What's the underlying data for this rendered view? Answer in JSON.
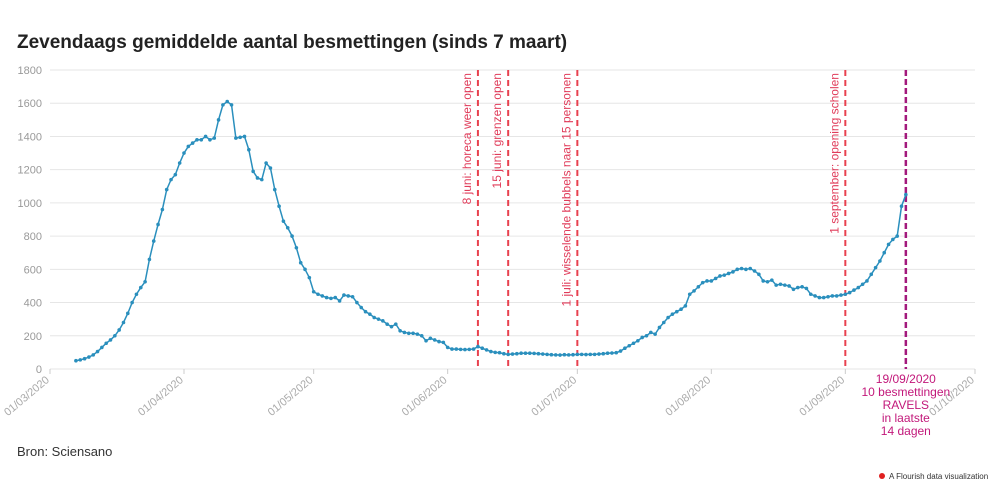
{
  "chart_data": {
    "type": "line",
    "title": "Zevendaags gemiddelde aantal besmettingen (sinds 7 maart)",
    "source": "Bron: Sciensano",
    "footer": "A Flourish data visualization",
    "xlim": [
      "01/03/2020",
      "01/10/2020"
    ],
    "xticks": [
      "01/03/2020",
      "01/04/2020",
      "01/05/2020",
      "01/06/2020",
      "01/07/2020",
      "01/08/2020",
      "01/09/2020",
      "01/10/2020"
    ],
    "ylim": [
      0,
      1800
    ],
    "yticks": [
      0,
      200,
      400,
      600,
      800,
      1000,
      1200,
      1400,
      1600,
      1800
    ],
    "grid": true,
    "x": [
      "07/03/2020",
      "08/03/2020",
      "09/03/2020",
      "10/03/2020",
      "11/03/2020",
      "12/03/2020",
      "13/03/2020",
      "14/03/2020",
      "15/03/2020",
      "16/03/2020",
      "17/03/2020",
      "18/03/2020",
      "19/03/2020",
      "20/03/2020",
      "21/03/2020",
      "22/03/2020",
      "23/03/2020",
      "24/03/2020",
      "25/03/2020",
      "26/03/2020",
      "27/03/2020",
      "28/03/2020",
      "29/03/2020",
      "30/03/2020",
      "31/03/2020",
      "01/04/2020",
      "02/04/2020",
      "03/04/2020",
      "04/04/2020",
      "05/04/2020",
      "06/04/2020",
      "07/04/2020",
      "08/04/2020",
      "09/04/2020",
      "10/04/2020",
      "11/04/2020",
      "12/04/2020",
      "13/04/2020",
      "14/04/2020",
      "15/04/2020",
      "16/04/2020",
      "17/04/2020",
      "18/04/2020",
      "19/04/2020",
      "20/04/2020",
      "21/04/2020",
      "22/04/2020",
      "23/04/2020",
      "24/04/2020",
      "25/04/2020",
      "26/04/2020",
      "27/04/2020",
      "28/04/2020",
      "29/04/2020",
      "30/04/2020",
      "01/05/2020",
      "02/05/2020",
      "03/05/2020",
      "04/05/2020",
      "05/05/2020",
      "06/05/2020",
      "07/05/2020",
      "08/05/2020",
      "09/05/2020",
      "10/05/2020",
      "11/05/2020",
      "12/05/2020",
      "13/05/2020",
      "14/05/2020",
      "15/05/2020",
      "16/05/2020",
      "17/05/2020",
      "18/05/2020",
      "19/05/2020",
      "20/05/2020",
      "21/05/2020",
      "22/05/2020",
      "23/05/2020",
      "24/05/2020",
      "25/05/2020",
      "26/05/2020",
      "27/05/2020",
      "28/05/2020",
      "29/05/2020",
      "30/05/2020",
      "31/05/2020",
      "01/06/2020",
      "02/06/2020",
      "03/06/2020",
      "04/06/2020",
      "05/06/2020",
      "06/06/2020",
      "07/06/2020",
      "08/06/2020",
      "09/06/2020",
      "10/06/2020",
      "11/06/2020",
      "12/06/2020",
      "13/06/2020",
      "14/06/2020",
      "15/06/2020",
      "16/06/2020",
      "17/06/2020",
      "18/06/2020",
      "19/06/2020",
      "20/06/2020",
      "21/06/2020",
      "22/06/2020",
      "23/06/2020",
      "24/06/2020",
      "25/06/2020",
      "26/06/2020",
      "27/06/2020",
      "28/06/2020",
      "29/06/2020",
      "30/06/2020",
      "01/07/2020",
      "02/07/2020",
      "03/07/2020",
      "04/07/2020",
      "05/07/2020",
      "06/07/2020",
      "07/07/2020",
      "08/07/2020",
      "09/07/2020",
      "10/07/2020",
      "11/07/2020",
      "12/07/2020",
      "13/07/2020",
      "14/07/2020",
      "15/07/2020",
      "16/07/2020",
      "17/07/2020",
      "18/07/2020",
      "19/07/2020",
      "20/07/2020",
      "21/07/2020",
      "22/07/2020",
      "23/07/2020",
      "24/07/2020",
      "25/07/2020",
      "26/07/2020",
      "27/07/2020",
      "28/07/2020",
      "29/07/2020",
      "30/07/2020",
      "31/07/2020",
      "01/08/2020",
      "02/08/2020",
      "03/08/2020",
      "04/08/2020",
      "05/08/2020",
      "06/08/2020",
      "07/08/2020",
      "08/08/2020",
      "09/08/2020",
      "10/08/2020",
      "11/08/2020",
      "12/08/2020",
      "13/08/2020",
      "14/08/2020",
      "15/08/2020",
      "16/08/2020",
      "17/08/2020",
      "18/08/2020",
      "19/08/2020",
      "20/08/2020",
      "21/08/2020",
      "22/08/2020",
      "23/08/2020",
      "24/08/2020",
      "25/08/2020",
      "26/08/2020",
      "27/08/2020",
      "28/08/2020",
      "29/08/2020",
      "30/08/2020",
      "31/08/2020",
      "01/09/2020",
      "02/09/2020",
      "03/09/2020",
      "04/09/2020",
      "05/09/2020",
      "06/09/2020",
      "07/09/2020",
      "08/09/2020",
      "09/09/2020",
      "10/09/2020",
      "11/09/2020",
      "12/09/2020",
      "13/09/2020",
      "14/09/2020",
      "15/09/2020"
    ],
    "color": "#2a8fbd",
    "values": [
      50,
      55,
      62,
      72,
      85,
      105,
      130,
      155,
      175,
      200,
      235,
      280,
      335,
      400,
      450,
      490,
      525,
      660,
      770,
      870,
      960,
      1080,
      1140,
      1170,
      1240,
      1300,
      1340,
      1360,
      1380,
      1380,
      1400,
      1380,
      1390,
      1500,
      1590,
      1610,
      1590,
      1390,
      1395,
      1400,
      1320,
      1190,
      1150,
      1140,
      1240,
      1210,
      1080,
      980,
      890,
      850,
      800,
      730,
      640,
      600,
      550,
      465,
      450,
      440,
      430,
      425,
      430,
      410,
      445,
      440,
      435,
      400,
      370,
      345,
      330,
      310,
      300,
      290,
      270,
      255,
      270,
      230,
      220,
      215,
      215,
      210,
      200,
      170,
      185,
      175,
      165,
      160,
      130,
      120,
      120,
      118,
      117,
      118,
      120,
      135,
      125,
      115,
      105,
      100,
      98,
      92,
      88,
      90,
      92,
      95,
      95,
      95,
      94,
      92,
      90,
      88,
      86,
      85,
      84,
      86,
      85,
      86,
      88,
      88,
      87,
      88,
      88,
      90,
      92,
      95,
      96,
      98,
      108,
      125,
      140,
      155,
      170,
      190,
      200,
      220,
      210,
      250,
      280,
      310,
      330,
      345,
      360,
      380,
      450,
      470,
      495,
      520,
      530,
      530,
      545,
      560,
      565,
      575,
      585,
      600,
      605,
      600,
      605,
      590,
      570,
      530,
      525,
      535,
      505,
      510,
      505,
      500,
      480,
      490,
      495,
      485,
      450,
      440,
      430,
      430,
      435,
      440,
      440,
      445,
      450,
      460,
      475,
      490,
      510,
      530,
      570,
      610,
      650,
      700,
      750,
      780,
      800,
      980,
      1050
    ],
    "annotations": [
      {
        "x": "08/06/2020",
        "label": "8 juni: horeca weer open"
      },
      {
        "x": "15/06/2020",
        "label": "15 juni: grenzen open"
      },
      {
        "x": "01/07/2020",
        "label": "1 juli: wisselende bubbels naar 15 personen"
      },
      {
        "x": "01/09/2020",
        "label": "1 september: opening scholen"
      }
    ],
    "highlight": {
      "lines": [
        "19/09/2020",
        "10 besmettingen",
        "RAVELS",
        "in laatste",
        "14 dagen"
      ]
    }
  }
}
